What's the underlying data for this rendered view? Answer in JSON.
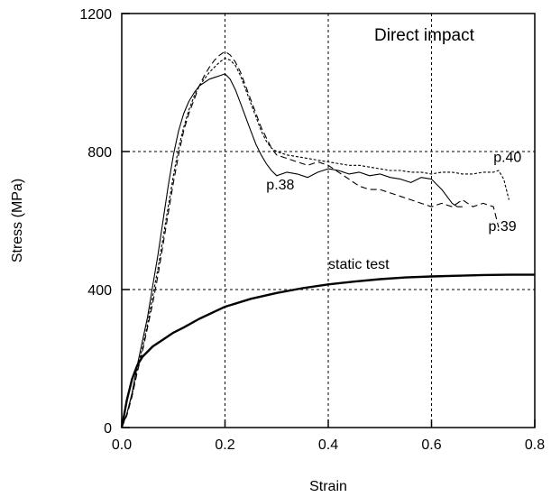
{
  "chart_data": {
    "type": "line",
    "title": "Direct impact",
    "xlabel": "Strain",
    "ylabel": "Stress (MPa)",
    "xlim": [
      0,
      0.8
    ],
    "ylim": [
      0,
      1200
    ],
    "xticks": [
      0.0,
      0.2,
      0.4,
      0.6,
      0.8
    ],
    "xtick_labels": [
      "0.0",
      "0.2",
      "0.4",
      "0.6",
      "0.8"
    ],
    "yticks": [
      0,
      400,
      800,
      1200
    ],
    "ytick_labels": [
      "0",
      "400",
      "800",
      "1200"
    ],
    "grid": true,
    "series": [
      {
        "name": "p.38",
        "style": "solid",
        "x": [
          0.0,
          0.01,
          0.02,
          0.03,
          0.04,
          0.05,
          0.06,
          0.07,
          0.08,
          0.09,
          0.1,
          0.11,
          0.12,
          0.13,
          0.14,
          0.15,
          0.16,
          0.17,
          0.18,
          0.19,
          0.2,
          0.21,
          0.22,
          0.23,
          0.24,
          0.25,
          0.26,
          0.27,
          0.28,
          0.29,
          0.3,
          0.32,
          0.34,
          0.36,
          0.38,
          0.4,
          0.42,
          0.44,
          0.46,
          0.48,
          0.5,
          0.52,
          0.54,
          0.56,
          0.58,
          0.6,
          0.62,
          0.64,
          0.65,
          0.66
        ],
        "y": [
          0,
          40,
          100,
          180,
          250,
          320,
          410,
          500,
          600,
          700,
          790,
          860,
          910,
          945,
          970,
          990,
          1000,
          1010,
          1015,
          1020,
          1025,
          1010,
          980,
          940,
          900,
          860,
          820,
          790,
          765,
          745,
          730,
          740,
          735,
          725,
          740,
          750,
          745,
          735,
          740,
          730,
          735,
          725,
          720,
          710,
          725,
          720,
          690,
          650,
          640,
          640
        ]
      },
      {
        "name": "p.39",
        "style": "dashed",
        "x": [
          0.0,
          0.01,
          0.02,
          0.03,
          0.04,
          0.05,
          0.06,
          0.07,
          0.08,
          0.09,
          0.1,
          0.11,
          0.12,
          0.13,
          0.14,
          0.15,
          0.16,
          0.17,
          0.18,
          0.19,
          0.2,
          0.21,
          0.22,
          0.23,
          0.24,
          0.25,
          0.26,
          0.27,
          0.28,
          0.29,
          0.3,
          0.32,
          0.34,
          0.36,
          0.38,
          0.4,
          0.42,
          0.44,
          0.46,
          0.48,
          0.5,
          0.52,
          0.54,
          0.56,
          0.58,
          0.6,
          0.62,
          0.64,
          0.66,
          0.68,
          0.7,
          0.72,
          0.73
        ],
        "y": [
          0,
          35,
          90,
          160,
          220,
          290,
          360,
          440,
          530,
          620,
          710,
          790,
          860,
          910,
          950,
          990,
          1020,
          1045,
          1065,
          1080,
          1090,
          1080,
          1060,
          1030,
          990,
          950,
          910,
          870,
          840,
          810,
          790,
          780,
          770,
          760,
          770,
          760,
          740,
          720,
          700,
          690,
          690,
          680,
          670,
          660,
          650,
          640,
          650,
          640,
          660,
          640,
          650,
          640,
          580
        ]
      },
      {
        "name": "p.40",
        "style": "dotted",
        "x": [
          0.0,
          0.01,
          0.02,
          0.03,
          0.04,
          0.05,
          0.06,
          0.07,
          0.08,
          0.09,
          0.1,
          0.11,
          0.12,
          0.13,
          0.14,
          0.15,
          0.16,
          0.17,
          0.18,
          0.19,
          0.2,
          0.21,
          0.22,
          0.23,
          0.24,
          0.25,
          0.26,
          0.27,
          0.28,
          0.29,
          0.3,
          0.32,
          0.34,
          0.36,
          0.38,
          0.4,
          0.42,
          0.44,
          0.46,
          0.48,
          0.5,
          0.52,
          0.54,
          0.56,
          0.58,
          0.6,
          0.62,
          0.64,
          0.66,
          0.68,
          0.7,
          0.72,
          0.73,
          0.74,
          0.75
        ],
        "y": [
          0,
          40,
          95,
          170,
          230,
          300,
          380,
          460,
          550,
          640,
          730,
          810,
          870,
          920,
          960,
          990,
          1010,
          1030,
          1045,
          1060,
          1070,
          1065,
          1050,
          1020,
          980,
          940,
          900,
          860,
          830,
          810,
          800,
          790,
          785,
          780,
          775,
          770,
          765,
          760,
          760,
          755,
          750,
          745,
          745,
          740,
          740,
          735,
          740,
          740,
          735,
          735,
          740,
          740,
          745,
          720,
          660
        ]
      },
      {
        "name": "static test",
        "style": "thick",
        "x": [
          0.0,
          0.005,
          0.01,
          0.02,
          0.03,
          0.04,
          0.05,
          0.06,
          0.08,
          0.1,
          0.12,
          0.15,
          0.2,
          0.25,
          0.3,
          0.35,
          0.4,
          0.45,
          0.5,
          0.55,
          0.6,
          0.65,
          0.7,
          0.75,
          0.8
        ],
        "y": [
          0,
          40,
          80,
          140,
          180,
          205,
          220,
          235,
          255,
          275,
          290,
          315,
          350,
          373,
          390,
          404,
          415,
          423,
          430,
          435,
          438,
          440,
          442,
          443,
          443
        ]
      }
    ],
    "annotations": [
      {
        "text": "p.38",
        "x": 0.28,
        "y": 690
      },
      {
        "text": "p.39",
        "x": 0.71,
        "y": 570
      },
      {
        "text": "p.40",
        "x": 0.72,
        "y": 770
      },
      {
        "text": "static test",
        "x": 0.4,
        "y": 460
      }
    ]
  }
}
